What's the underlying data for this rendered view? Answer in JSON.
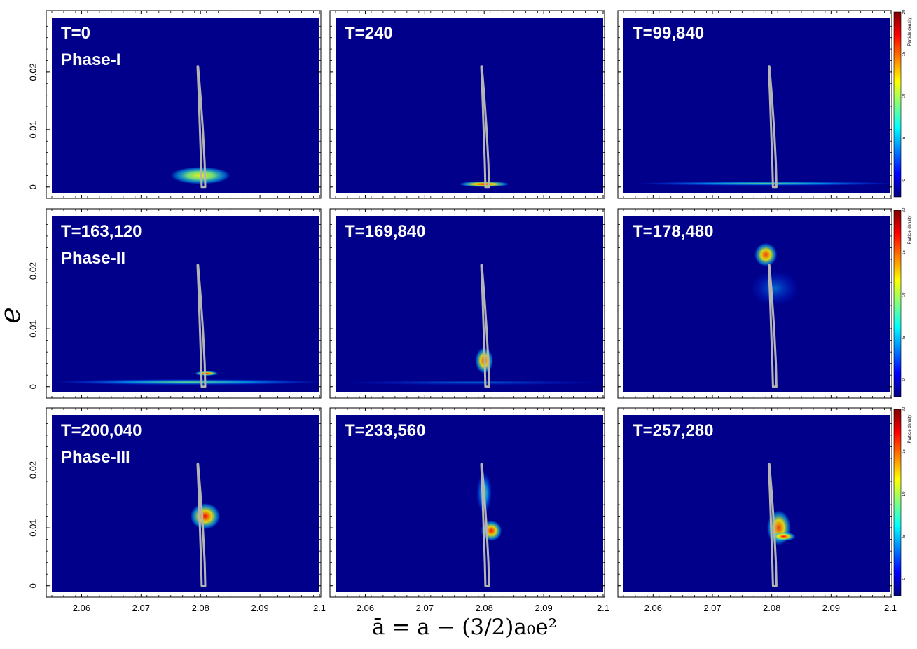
{
  "chart_data": {
    "type": "heatmap",
    "colorbar": {
      "label": "Particle density",
      "ticks": [
        0,
        5,
        10,
        15,
        20
      ],
      "range": [
        -2,
        20
      ],
      "colormap": [
        "#00007f",
        "#0000ff",
        "#007fff",
        "#00ffff",
        "#7fff7f",
        "#ffff00",
        "#ff7f00",
        "#ff0000",
        "#7f0000"
      ]
    },
    "shared_xlabel": "ā = a − (3/2)a₀e²",
    "shared_ylabel": "e",
    "xlim": [
      2.055,
      2.1
    ],
    "ylim": [
      -0.001,
      0.0295
    ],
    "xticks": [
      2.06,
      2.07,
      2.08,
      2.09,
      2.1
    ],
    "xtick_labels": [
      "2.06",
      "2.07",
      "2.08",
      "2.09",
      "2.1"
    ],
    "yticks": [
      0,
      0.01,
      0.02
    ],
    "ytick_labels": [
      "0",
      "0.01",
      "0.02"
    ],
    "background_color": "#00008b",
    "separatrix_curve": {
      "color": "#b4b4b4",
      "note": "",
      "left_branch": [
        [
          2.0795,
          0.021
        ],
        [
          2.0797,
          0.016
        ],
        [
          2.0799,
          0.01
        ],
        [
          2.0801,
          0.004
        ],
        [
          2.0802,
          0.0
        ]
      ],
      "right_branch": [
        [
          2.0796,
          0.021
        ],
        [
          2.08,
          0.016
        ],
        [
          2.0804,
          0.01
        ],
        [
          2.0807,
          0.004
        ],
        [
          2.0808,
          0.0
        ]
      ]
    },
    "panels": [
      {
        "title": "T=0",
        "phase": "Phase-I",
        "blobs": [
          {
            "x": 2.08,
            "y": 0.002,
            "w": 0.01,
            "h": 0.003,
            "intensity": "green"
          }
        ]
      },
      {
        "title": "T=240",
        "phase": "",
        "blobs": [
          {
            "x": 2.08,
            "y": 0.0005,
            "w": 0.0085,
            "h": 0.001,
            "intensity": "red"
          }
        ]
      },
      {
        "title": "T=99,840",
        "phase": "",
        "blobs": [
          {
            "x": 2.079,
            "y": 0.0006,
            "w": 0.044,
            "h": 0.0006,
            "intensity": "cyan"
          }
        ]
      },
      {
        "title": "T=163,120",
        "phase": "Phase-II",
        "blobs": [
          {
            "x": 2.078,
            "y": 0.0008,
            "w": 0.045,
            "h": 0.001,
            "intensity": "cyan"
          },
          {
            "x": 2.081,
            "y": 0.0023,
            "w": 0.004,
            "h": 0.0008,
            "intensity": "red"
          }
        ]
      },
      {
        "title": "T=169,840",
        "phase": "",
        "blobs": [
          {
            "x": 2.08,
            "y": 0.0045,
            "w": 0.003,
            "h": 0.0045,
            "intensity": "orange"
          },
          {
            "x": 2.078,
            "y": 0.0007,
            "w": 0.044,
            "h": 0.0008,
            "intensity": "blue"
          }
        ]
      },
      {
        "title": "T=178,480",
        "phase": "",
        "blobs": [
          {
            "x": 2.079,
            "y": 0.0228,
            "w": 0.0038,
            "h": 0.004,
            "intensity": "orange"
          },
          {
            "x": 2.0805,
            "y": 0.017,
            "w": 0.008,
            "h": 0.006,
            "intensity": "blue"
          }
        ]
      },
      {
        "title": "T=200,040",
        "phase": "Phase-III",
        "blobs": [
          {
            "x": 2.0808,
            "y": 0.012,
            "w": 0.005,
            "h": 0.0045,
            "intensity": "red"
          }
        ]
      },
      {
        "title": "T=233,560",
        "phase": "",
        "blobs": [
          {
            "x": 2.08,
            "y": 0.016,
            "w": 0.0025,
            "h": 0.007,
            "intensity": "cyan"
          },
          {
            "x": 2.0812,
            "y": 0.0095,
            "w": 0.0035,
            "h": 0.0035,
            "intensity": "red"
          }
        ]
      },
      {
        "title": "T=257,280",
        "phase": "",
        "blobs": [
          {
            "x": 2.0812,
            "y": 0.01,
            "w": 0.004,
            "h": 0.006,
            "intensity": "orange"
          },
          {
            "x": 2.082,
            "y": 0.0085,
            "w": 0.004,
            "h": 0.0015,
            "intensity": "red"
          }
        ]
      }
    ]
  }
}
